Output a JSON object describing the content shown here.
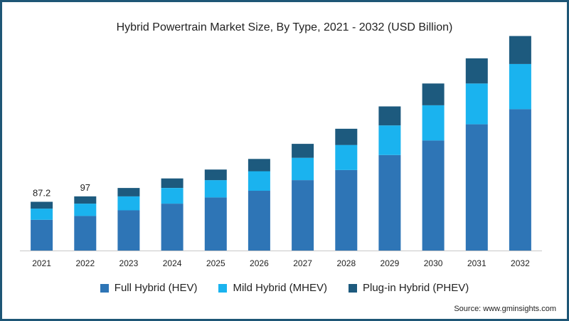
{
  "title": "Hybrid Powertrain Market Size, By Type, 2021 - 2032 (USD Billion)",
  "source": "Source: www.gminsights.com",
  "chart_data": {
    "type": "bar",
    "stacked": true,
    "categories": [
      "2021",
      "2022",
      "2023",
      "2024",
      "2025",
      "2026",
      "2027",
      "2028",
      "2029",
      "2030",
      "2031",
      "2032"
    ],
    "series": [
      {
        "name": "Full Hybrid (HEV)",
        "color": "#2e75b6",
        "values": [
          55,
          62,
          72,
          84,
          95,
          107,
          126,
          144,
          171,
          197,
          226,
          253
        ]
      },
      {
        "name": "Mild Hybrid (MHEV)",
        "color": "#1ab3ef",
        "values": [
          20,
          22,
          25,
          28,
          31,
          35,
          40,
          45,
          53,
          63,
          73,
          81
        ]
      },
      {
        "name": "Plug-in Hybrid (PHEV)",
        "color": "#1d5a7e",
        "values": [
          12.2,
          13,
          15,
          17,
          19,
          22,
          25,
          29,
          34,
          39,
          45,
          50
        ]
      }
    ],
    "data_labels": [
      {
        "category": "2021",
        "text": "87.2"
      },
      {
        "category": "2022",
        "text": "97"
      }
    ],
    "ylim": [
      0,
      400
    ],
    "grid": false,
    "legend": "bottom"
  }
}
